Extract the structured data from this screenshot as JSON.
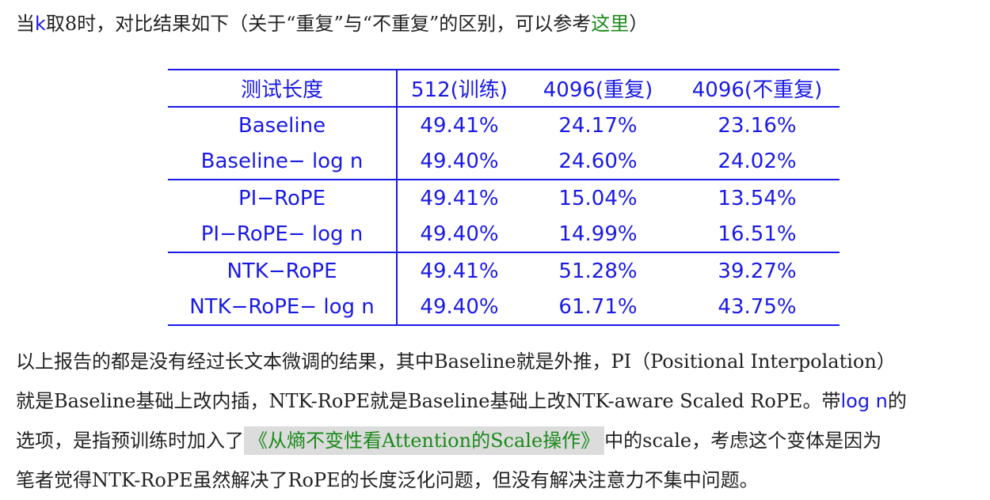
{
  "intro": {
    "prefix": "当",
    "k": "k",
    "text1": "取8时，对比结果如下（关于“重复”与“不重复”的区别，可以参考",
    "link": "这里",
    "suffix": "）"
  },
  "table": {
    "headers": [
      "测试长度",
      "512(训练)",
      "4096(重复)",
      "4096(不重复)"
    ],
    "rows": [
      [
        "Baseline",
        "49.41%",
        "24.17%",
        "23.16%"
      ],
      [
        "Baseline− log n",
        "49.40%",
        "24.60%",
        "24.02%"
      ],
      [
        "PI−RoPE",
        "49.41%",
        "15.04%",
        "13.54%"
      ],
      [
        "PI−RoPE− log n",
        "49.40%",
        "14.99%",
        "16.51%"
      ],
      [
        "NTK−RoPE",
        "49.41%",
        "51.28%",
        "39.27%"
      ],
      [
        "NTK−RoPE− log n",
        "49.40%",
        "61.71%",
        "43.75%"
      ]
    ]
  },
  "para": {
    "line1": "以上报告的都是没有经过长文本微调的结果，其中Baseline就是外推，PI（Positional Interpolation）",
    "line2a": "就是Baseline基础上改内插，NTK-RoPE就是Baseline基础上改NTK-aware Scaled RoPE。带",
    "logn": "log n",
    "line2b": "的",
    "line3a": "选项，是指预训练时加入了",
    "link": "《从熵不变性看Attention的Scale操作》",
    "line3b": "中的scale，考虑这个变体是因为",
    "line4": "笔者觉得NTK-RoPE虽然解决了RoPE的长度泛化问题，但没有解决注意力不集中问题。"
  }
}
